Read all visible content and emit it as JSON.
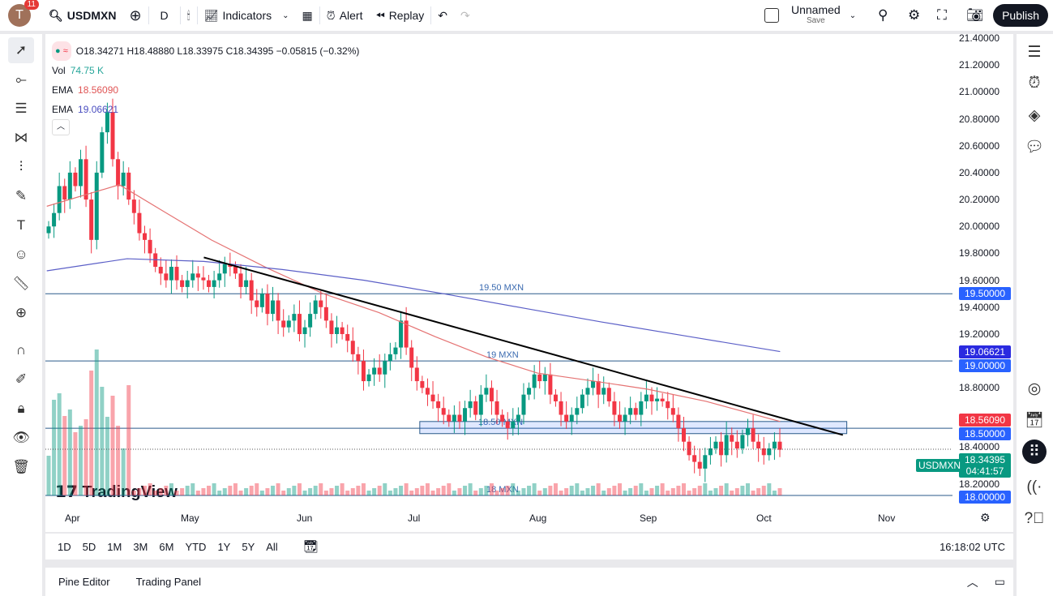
{
  "topbar": {
    "avatar_letter": "T",
    "notifications": "11",
    "symbol": "USDMXN",
    "interval": "D",
    "indicators": "Indicators",
    "alert": "Alert",
    "replay": "Replay",
    "layout_name": "Unnamed",
    "layout_save": "Save",
    "publish": "Publish"
  },
  "legend": {
    "ohlc": "O18.34271 H18.48880 L18.33975 C18.34395 −0.05815 (−0.32%)",
    "vol_label": "Vol",
    "vol_value": "74.75 K",
    "ema1_label": "EMA",
    "ema1_value": "18.56090",
    "ema2_label": "EMA",
    "ema2_value": "19.06621"
  },
  "colors": {
    "up": "#089981",
    "down": "#f23645",
    "ema_fast": "#e57373",
    "ema_slow": "#5b5fc7",
    "hline": "#2a5a8a",
    "tag_blue": "#2962ff",
    "tag_red": "#f23645",
    "tag_green": "#089981"
  },
  "price_axis": {
    "ticks": [
      "21.40000",
      "21.20000",
      "21.00000",
      "20.80000",
      "20.60000",
      "20.40000",
      "20.20000",
      "20.00000",
      "19.80000",
      "19.60000",
      "19.40000",
      "19.20000",
      "18.80000",
      "18.40000",
      "18.20000"
    ],
    "tick_values": [
      21.4,
      21.2,
      21.0,
      20.8,
      20.6,
      20.4,
      20.2,
      20.0,
      19.8,
      19.6,
      19.4,
      19.2,
      18.8,
      18.4,
      18.2
    ],
    "tags": [
      {
        "text": "19.50000",
        "price": 19.5,
        "color": "#2962ff"
      },
      {
        "text": "19.06621",
        "price": 19.07,
        "color": "#2a2ae0"
      },
      {
        "text": "19.00000",
        "price": 19.0,
        "color": "#2962ff"
      },
      {
        "text": "18.56090",
        "price": 18.56,
        "color": "#f23645"
      },
      {
        "text": "18.50000",
        "price": 18.5,
        "color": "#2962ff"
      },
      {
        "text": "18.00000",
        "price": 18.0,
        "color": "#2962ff"
      }
    ],
    "last": {
      "symbol": "USDMXN",
      "price": "18.34395",
      "countdown": "04:41:57",
      "value": 18.34395
    }
  },
  "time_axis": {
    "months": [
      "Apr",
      "May",
      "Jun",
      "Jul",
      "Aug",
      "Sep",
      "Oct",
      "Nov"
    ]
  },
  "horizontal_lines": [
    {
      "label": "19.50 MXN",
      "price": 19.5
    },
    {
      "label": "19 MXN",
      "price": 19.0
    },
    {
      "label": "18.50 MXN",
      "price": 18.5
    },
    {
      "label": "18 MXN",
      "price": 18.0
    }
  ],
  "chart": {
    "closes": [
      20.0,
      20.1,
      20.3,
      20.2,
      20.4,
      20.3,
      20.5,
      20.2,
      19.9,
      20.4,
      20.7,
      20.85,
      20.5,
      20.3,
      20.4,
      20.2,
      20.1,
      19.95,
      19.9,
      19.8,
      19.7,
      19.65,
      19.6,
      19.7,
      19.6,
      19.55,
      19.6,
      19.65,
      19.62,
      19.6,
      19.55,
      19.6,
      19.65,
      19.72,
      19.7,
      19.65,
      19.55,
      19.6,
      19.45,
      19.4,
      19.5,
      19.35,
      19.45,
      19.3,
      19.25,
      19.3,
      19.35,
      19.2,
      19.25,
      19.35,
      19.45,
      19.4,
      19.3,
      19.2,
      19.25,
      19.2,
      19.15,
      19.05,
      19.0,
      18.85,
      18.9,
      18.95,
      18.9,
      19.0,
      19.05,
      19.1,
      19.3,
      19.1,
      18.95,
      18.85,
      18.8,
      18.75,
      18.7,
      18.65,
      18.6,
      18.55,
      18.6,
      18.55,
      18.65,
      18.7,
      18.6,
      18.75,
      18.8,
      18.7,
      18.6,
      18.55,
      18.5,
      18.55,
      18.6,
      18.75,
      18.8,
      18.9,
      18.85,
      18.9,
      18.75,
      18.7,
      18.6,
      18.55,
      18.6,
      18.65,
      18.75,
      18.8,
      18.85,
      18.75,
      18.8,
      18.7,
      18.6,
      18.55,
      18.6,
      18.65,
      18.6,
      18.7,
      18.75,
      18.7,
      18.72,
      18.7,
      18.65,
      18.6,
      18.5,
      18.4,
      18.3,
      18.25,
      18.2,
      18.3,
      18.35,
      18.4,
      18.3,
      18.45,
      18.4,
      18.35,
      18.45,
      18.5,
      18.4,
      18.35,
      18.3,
      18.35,
      18.4,
      18.34
    ],
    "ema_fast": [
      [
        "03-25",
        20.15
      ],
      [
        "04-13",
        20.31
      ],
      [
        "04-24",
        20.12
      ],
      [
        "05-07",
        19.9
      ],
      [
        "05-22",
        19.69
      ],
      [
        "06-06",
        19.5
      ],
      [
        "06-21",
        19.36
      ],
      [
        "07-06",
        19.18
      ],
      [
        "07-19",
        19.03
      ],
      [
        "08-01",
        18.91
      ],
      [
        "08-17",
        18.85
      ],
      [
        "09-01",
        18.79
      ],
      [
        "09-16",
        18.7
      ],
      [
        "10-05",
        18.55
      ]
    ],
    "ema_slow": [
      [
        "03-25",
        19.67
      ],
      [
        "04-15",
        19.76
      ],
      [
        "05-05",
        19.74
      ],
      [
        "05-26",
        19.68
      ],
      [
        "06-17",
        19.6
      ],
      [
        "07-08",
        19.5
      ],
      [
        "07-29",
        19.39
      ],
      [
        "08-19",
        19.29
      ],
      [
        "09-12",
        19.18
      ],
      [
        "10-05",
        19.07
      ]
    ],
    "trendline": [
      [
        "05-05",
        19.77
      ],
      [
        "10-21",
        18.45
      ]
    ],
    "zone": {
      "from": "07-02",
      "to": "10-22",
      "top": 18.55,
      "bottom": 18.46
    },
    "watermark": "TradingView"
  },
  "range": {
    "buttons": [
      "1D",
      "5D",
      "1M",
      "3M",
      "6M",
      "YTD",
      "1Y",
      "5Y",
      "All"
    ],
    "clock": "16:18:02 UTC"
  },
  "bottom": {
    "pine": "Pine Editor",
    "panel": "Trading Panel"
  }
}
